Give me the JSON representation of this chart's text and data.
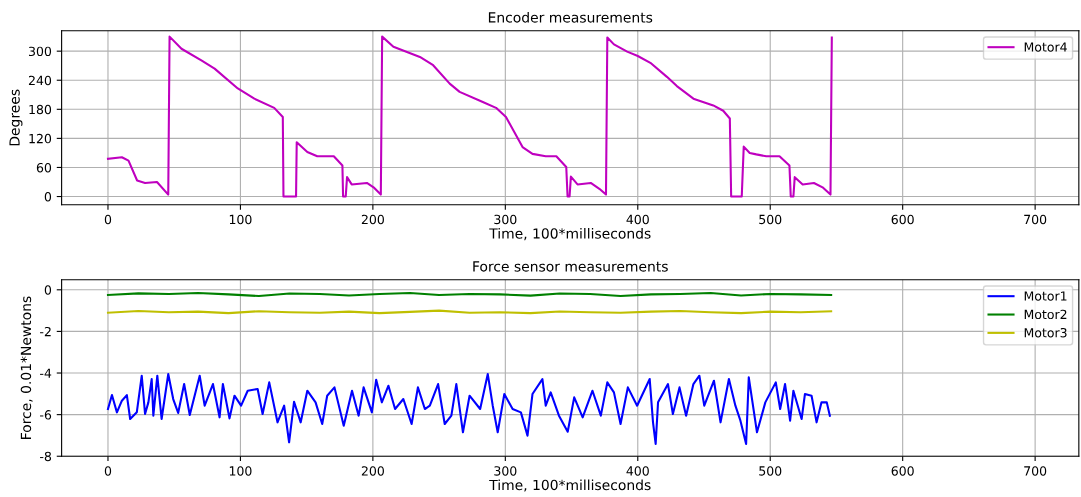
{
  "chart_data": [
    {
      "type": "line",
      "title": "Encoder measurements",
      "xlabel": "Time, 100*milliseconds",
      "ylabel": "Degrees",
      "xlim": [
        -35,
        733
      ],
      "xticks": [
        0,
        100,
        200,
        300,
        400,
        500,
        600,
        700
      ],
      "ylim": [
        -17,
        342
      ],
      "yticks": [
        0,
        60,
        120,
        180,
        240,
        300
      ],
      "grid": true,
      "legend": "top right",
      "series": [
        {
          "name": "Motor4",
          "color": "#bf00bf",
          "x": [
            0,
            10.5,
            15.5,
            22,
            28,
            37,
            45.5,
            46.5,
            55.5,
            70.5,
            80.5,
            98,
            110.5,
            125.5,
            132,
            132.5,
            142,
            142.5,
            150.5,
            158,
            170.5,
            177,
            177.5,
            179.5,
            180.5,
            184,
            195.5,
            200.5,
            206,
            207,
            215.5,
            235.5,
            245.5,
            258,
            265.5,
            283,
            293,
            300.5,
            313,
            320.5,
            330.5,
            338.5,
            346,
            347,
            348.5,
            349.5,
            354.5,
            364.5,
            371,
            376,
            377,
            382,
            392,
            400,
            409.5,
            422,
            429.5,
            442,
            457,
            464.5,
            469.5,
            470.5,
            478.5,
            480,
            484.5,
            489.5,
            497,
            507,
            514.5,
            515.5,
            517.5,
            518.5,
            524.5,
            533,
            539.5,
            545.5,
            546.5
          ],
          "values": [
            78,
            81,
            74,
            33,
            28,
            30,
            4,
            330,
            305,
            281,
            264,
            223,
            202,
            183,
            164,
            0,
            0,
            112,
            92,
            83,
            83,
            64,
            0,
            0,
            40,
            25,
            28,
            19,
            4,
            330,
            309,
            288,
            271,
            233,
            216,
            195,
            183,
            164,
            102,
            88,
            83,
            83,
            61,
            0,
            0,
            41,
            25,
            28,
            16,
            4,
            328,
            314,
            299,
            290,
            276,
            247,
            228,
            202,
            188,
            177,
            161,
            0,
            0,
            103,
            90,
            87,
            83,
            83,
            64,
            0,
            0,
            40,
            25,
            28,
            19,
            4,
            328
          ]
        }
      ]
    },
    {
      "type": "line",
      "title": "Force sensor measurements",
      "xlabel": "Time, 100*milliseconds",
      "ylabel": "Force, 0.01*Newtons",
      "xlim": [
        -35,
        733
      ],
      "xticks": [
        0,
        100,
        200,
        300,
        400,
        500,
        600,
        700
      ],
      "ylim": [
        -8,
        0.48
      ],
      "yticks": [
        -8,
        -6,
        -4,
        -2,
        0
      ],
      "grid": true,
      "legend": "top right",
      "series": [
        {
          "name": "Motor1",
          "color": "#0000ff",
          "x": [
            0,
            3,
            6.75,
            10.5,
            14.25,
            16.75,
            21.75,
            25.5,
            28,
            30.5,
            33,
            34.25,
            37.25,
            40.5,
            45.5,
            49.25,
            53,
            57.5,
            61.75,
            69.25,
            73,
            79.25,
            84.25,
            86.75,
            91.75,
            95.5,
            100.5,
            105.5,
            113,
            116.75,
            121.75,
            128,
            133,
            136.75,
            140.5,
            145.5,
            150.5,
            156.75,
            161.75,
            165.5,
            171,
            178,
            184.25,
            189.25,
            193,
            199.25,
            202.5,
            206.75,
            211.75,
            216.75,
            223,
            229.25,
            234,
            239.25,
            243,
            249.25,
            254.25,
            259.25,
            263,
            268,
            273,
            281,
            286.75,
            290.5,
            294.25,
            299.25,
            305.5,
            311.75,
            316.75,
            320.5,
            328,
            330.5,
            334.25,
            340.5,
            347.1,
            352,
            358.4,
            365.8,
            372.1,
            377,
            382,
            387,
            392.5,
            399.5,
            409,
            411.5,
            413.5,
            415.3,
            422.8,
            426.5,
            431.5,
            436.5,
            442,
            446.5,
            450.2,
            457.5,
            462.5,
            468.8,
            473.7,
            477.5,
            481.8,
            483.8,
            490,
            496.3,
            504.2,
            507.5,
            511.2,
            515,
            517.5,
            523.7,
            526.2,
            531.2,
            535,
            538.7,
            542.7,
            545
          ],
          "values": [
            -5.73,
            -5.06,
            -5.89,
            -5.33,
            -5.06,
            -6.21,
            -5.89,
            -4.13,
            -5.97,
            -5.41,
            -4.29,
            -6.05,
            -4.13,
            -6.21,
            -4.05,
            -5.25,
            -5.92,
            -4.53,
            -6.02,
            -4.13,
            -5.57,
            -4.53,
            -6.13,
            -4.53,
            -6.18,
            -5.09,
            -5.57,
            -4.85,
            -4.77,
            -5.97,
            -4.45,
            -6.37,
            -5.57,
            -7.33,
            -5.38,
            -6.37,
            -4.85,
            -5.41,
            -6.45,
            -5.09,
            -4.69,
            -6.53,
            -4.85,
            -6.05,
            -4.69,
            -5.89,
            -4.32,
            -5.41,
            -4.61,
            -5.73,
            -5.25,
            -6.45,
            -4.69,
            -5.73,
            -5.57,
            -4.53,
            -6.45,
            -6.05,
            -4.53,
            -6.85,
            -5.09,
            -5.73,
            -4.05,
            -5.57,
            -6.85,
            -5.01,
            -5.73,
            -5.89,
            -7.01,
            -5.01,
            -4.29,
            -5.57,
            -4.93,
            -6.05,
            -6.82,
            -5.17,
            -6.13,
            -4.85,
            -6.05,
            -4.45,
            -4.93,
            -6.45,
            -4.69,
            -5.57,
            -4.29,
            -6.37,
            -7.41,
            -5.41,
            -4.53,
            -5.97,
            -4.69,
            -6.05,
            -4.53,
            -4.13,
            -5.57,
            -4.37,
            -6.37,
            -4.29,
            -5.57,
            -6.29,
            -7.41,
            -4.21,
            -6.85,
            -5.41,
            -4.45,
            -5.73,
            -4.53,
            -6.29,
            -4.85,
            -6.21,
            -5.01,
            -5.09,
            -6.37,
            -5.41,
            -5.41,
            -6.05
          ]
        },
        {
          "name": "Motor2",
          "color": "#008000",
          "x": [
            0,
            23,
            46,
            68,
            91,
            114,
            137,
            160,
            182,
            205,
            228,
            250,
            273,
            296,
            319,
            341,
            364,
            387,
            410,
            432,
            455,
            478,
            500,
            523,
            546
          ],
          "values": [
            -0.25,
            -0.17,
            -0.2,
            -0.15,
            -0.22,
            -0.3,
            -0.18,
            -0.2,
            -0.27,
            -0.2,
            -0.15,
            -0.25,
            -0.2,
            -0.22,
            -0.28,
            -0.18,
            -0.2,
            -0.3,
            -0.22,
            -0.2,
            -0.15,
            -0.27,
            -0.2,
            -0.22,
            -0.25
          ]
        },
        {
          "name": "Motor3",
          "color": "#bfbf00",
          "x": [
            0,
            23,
            46,
            68,
            91,
            114,
            137,
            160,
            182,
            205,
            228,
            250,
            273,
            296,
            319,
            341,
            364,
            387,
            410,
            432,
            455,
            478,
            500,
            523,
            546
          ],
          "values": [
            -1.1,
            -1.02,
            -1.08,
            -1.05,
            -1.12,
            -1.03,
            -1.08,
            -1.1,
            -1.05,
            -1.12,
            -1.06,
            -1.0,
            -1.1,
            -1.08,
            -1.12,
            -1.04,
            -1.08,
            -1.1,
            -1.05,
            -1.02,
            -1.08,
            -1.12,
            -1.05,
            -1.08,
            -1.03
          ]
        }
      ]
    }
  ]
}
